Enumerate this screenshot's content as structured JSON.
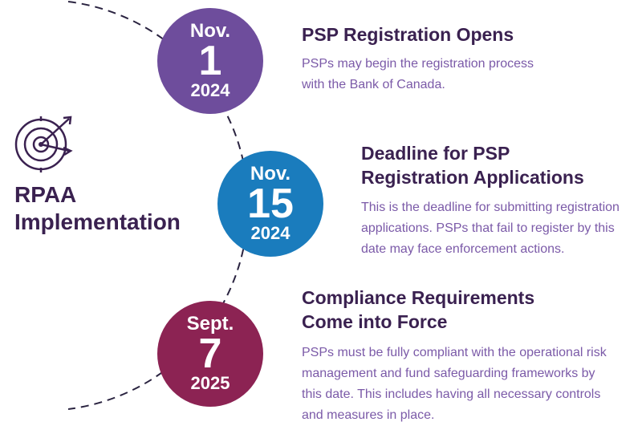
{
  "main_title": {
    "line1": "RPAA",
    "line2": "Implementation"
  },
  "icon": "target-with-arrows-icon",
  "colors": {
    "event1": "#6e4d9c",
    "event2": "#1a7cbd",
    "event3": "#8c2353",
    "heading": "#3a2150",
    "body": "#7b5aa8"
  },
  "events": [
    {
      "month": "Nov.",
      "day": "1",
      "year": "2024",
      "title_line1": "PSP Registration Opens",
      "title_line2": "",
      "desc_lines": [
        "PSPs may begin the registration process",
        "with the Bank of Canada."
      ]
    },
    {
      "month": "Nov.",
      "day": "15",
      "year": "2024",
      "title_line1": "Deadline for PSP",
      "title_line2": "Registration Applications",
      "desc_lines": [
        "This is the deadline for submitting registration",
        "applications. PSPs that fail to register by this",
        "date may face enforcement actions."
      ]
    },
    {
      "month": "Sept.",
      "day": "7",
      "year": "2025",
      "title_line1": "Compliance Requirements",
      "title_line2": "Come into Force",
      "desc_lines": [
        "PSPs must be fully compliant with the operational risk",
        "management and fund safeguarding frameworks by",
        "this date. This includes having all necessary controls",
        "and measures in place."
      ]
    }
  ]
}
